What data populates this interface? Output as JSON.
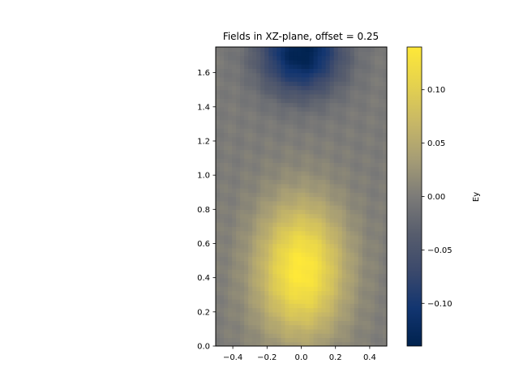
{
  "chart_data": {
    "type": "heatmap",
    "title": "Fields in XZ-plane, offset = 0.25",
    "xlim": [
      -0.5,
      0.5
    ],
    "ylim": [
      0.0,
      1.75
    ],
    "x_ticks": [
      -0.4,
      -0.2,
      0.0,
      0.2,
      0.4
    ],
    "x_tick_labels": [
      "−0.4",
      "−0.2",
      "0.0",
      "0.2",
      "0.4"
    ],
    "y_ticks": [
      0.0,
      0.2,
      0.4,
      0.6,
      0.8,
      1.0,
      1.2,
      1.4,
      1.6
    ],
    "y_tick_labels": [
      "0.0",
      "0.2",
      "0.4",
      "0.6",
      "0.8",
      "1.0",
      "1.2",
      "1.4",
      "1.6"
    ],
    "colorbar": {
      "label": "Ey",
      "colormap": "cividis",
      "vmin": -0.14,
      "vmax": 0.14,
      "ticks": [
        -0.1,
        -0.05,
        0.0,
        0.05,
        0.1
      ],
      "tick_labels": [
        "−0.10",
        "−0.05",
        "0.00",
        "0.05",
        "0.10"
      ]
    },
    "field_features": [
      {
        "kind": "peak",
        "x": 0.0,
        "z": 0.45,
        "value": 0.14
      },
      {
        "kind": "trough",
        "x": 0.0,
        "z": 1.7,
        "value": -0.14
      }
    ],
    "colors": {
      "low": "#00204c",
      "mid": "#7c7b78",
      "high": "#ffe945"
    }
  }
}
